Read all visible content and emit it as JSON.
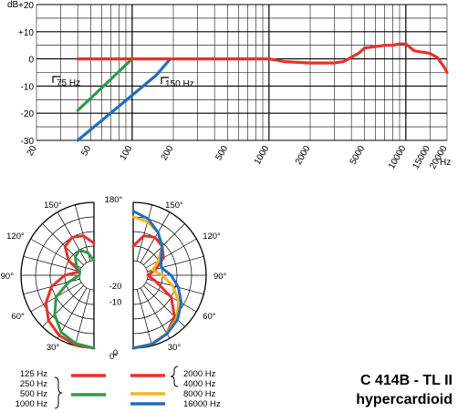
{
  "chart_data": [
    {
      "type": "line",
      "ylabel": "dB",
      "xunit": "Hz",
      "xscale": "log",
      "xlim": [
        20,
        20000
      ],
      "ylim": [
        -30,
        20
      ],
      "grid": true,
      "yticks": [
        {
          "value": 20,
          "label": "+20"
        },
        {
          "value": 10,
          "label": "+10"
        },
        {
          "value": 0,
          "label": "0"
        },
        {
          "value": -10,
          "label": "-10"
        },
        {
          "value": -20,
          "label": "-20"
        },
        {
          "value": -30,
          "label": "-30"
        }
      ],
      "xticks": [
        {
          "value": 20,
          "label": "20"
        },
        {
          "value": 50,
          "label": "50"
        },
        {
          "value": 100,
          "label": "100"
        },
        {
          "value": 200,
          "label": "200"
        },
        {
          "value": 500,
          "label": "500"
        },
        {
          "value": 1000,
          "label": "1000"
        },
        {
          "value": 2000,
          "label": "2000"
        },
        {
          "value": 5000,
          "label": "5000"
        },
        {
          "value": 10000,
          "label": "10000"
        },
        {
          "value": 15000,
          "label": "15000"
        },
        {
          "value": 20000,
          "label": "20000"
        }
      ],
      "annotations": [
        "75 Hz",
        "150 Hz"
      ],
      "series": [
        {
          "color": "#e8312a",
          "x": [
            40,
            100,
            500,
            1000,
            1300,
            2000,
            3000,
            3500,
            4500,
            5000,
            7000,
            8000,
            9000,
            10000,
            11500,
            15000,
            17000,
            19000,
            20000
          ],
          "y": [
            0,
            0,
            0,
            0,
            -1,
            -1.5,
            -1.5,
            -1,
            2,
            4,
            5,
            5,
            5.5,
            5.5,
            3,
            2,
            0.5,
            -3,
            -5
          ]
        },
        {
          "color": "#2f9a4a",
          "x": [
            40,
            75,
            100
          ],
          "y": [
            -19,
            -6,
            0
          ]
        },
        {
          "color": "#1f6fbf",
          "x": [
            40,
            150,
            190
          ],
          "y": [
            -30,
            -6,
            0
          ]
        }
      ]
    },
    {
      "type": "polar",
      "angle_labels": [
        "0°",
        "30°",
        "60°",
        "90°",
        "120°",
        "150°",
        "180°"
      ],
      "radial_labels": [
        "0",
        "-10",
        "-20"
      ],
      "legend_left": [
        "125 Hz",
        "250 Hz",
        "500 Hz",
        "1000 Hz"
      ],
      "legend_right": [
        "2000 Hz",
        "4000 Hz",
        "8000 Hz",
        "16000 Hz"
      ],
      "series": [
        {
          "color": "#e8312a",
          "side": "left",
          "r": [
            0,
            -0.3,
            -1.2,
            -3,
            -6,
            -10,
            -15,
            -20,
            -15,
            -11,
            -10,
            -11,
            -14
          ]
        },
        {
          "color": "#2f9a4a",
          "side": "left",
          "r": [
            0,
            -0.8,
            -2.5,
            -6,
            -10,
            -16,
            -20,
            -20,
            -18,
            -16,
            -15,
            -17,
            -20
          ]
        },
        {
          "color": "#e8312a",
          "side": "right",
          "r": [
            0,
            -0.5,
            -2,
            -5,
            -10,
            -17,
            -20,
            -17,
            -13,
            -11,
            -10,
            -11,
            -15
          ]
        },
        {
          "color": "#f4b324",
          "side": "right",
          "r": [
            0,
            -0.6,
            -2,
            -4,
            -7,
            -11,
            -15,
            -18,
            -15,
            -11,
            -8,
            -6,
            -5
          ]
        },
        {
          "color": "#1f6fbf",
          "side": "right",
          "r": [
            0,
            -0.5,
            -1.8,
            -3.5,
            -6,
            -9,
            -12,
            -15,
            -14,
            -11,
            -8,
            -5,
            -3
          ]
        }
      ]
    }
  ],
  "title": {
    "model": "C 414B - TL II",
    "pattern": "hypercardioid"
  }
}
